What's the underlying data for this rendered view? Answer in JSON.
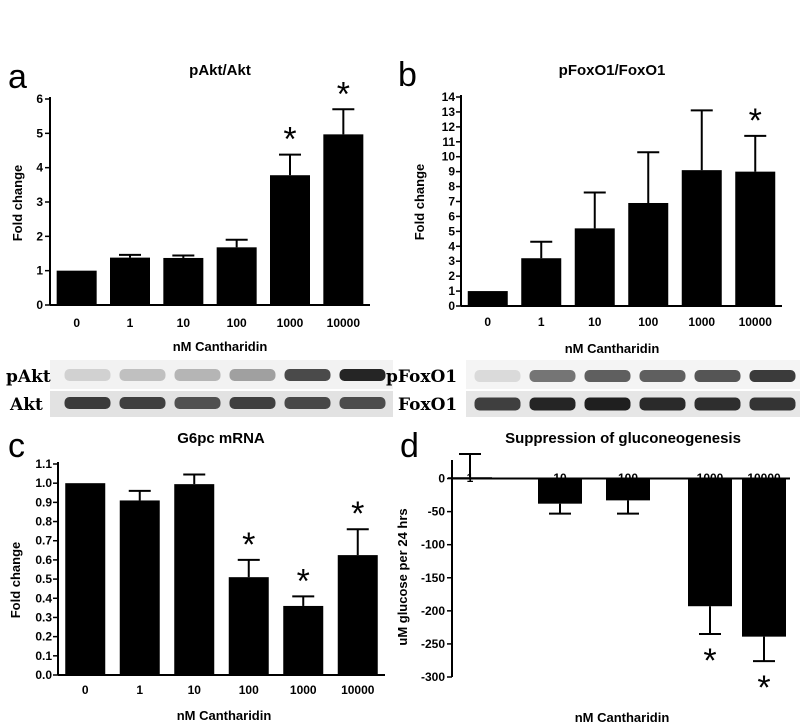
{
  "chart_data": [
    {
      "id": "a",
      "panel_label": "a",
      "type": "bar",
      "title": "pAkt/Akt",
      "xlabel": "nM Cantharidin",
      "ylabel": "Fold change",
      "categories": [
        "0",
        "1",
        "10",
        "100",
        "1000",
        "10000"
      ],
      "values": [
        1.0,
        1.38,
        1.37,
        1.68,
        3.78,
        4.97
      ],
      "errors": [
        0,
        0.08,
        0.07,
        0.22,
        0.6,
        0.73
      ],
      "significant": [
        false,
        false,
        false,
        false,
        true,
        true
      ],
      "ylim": [
        0,
        6
      ],
      "yticks": [
        "0",
        "1",
        "2",
        "3",
        "4",
        "5",
        "6"
      ],
      "significance_marker": "*"
    },
    {
      "id": "b",
      "panel_label": "b",
      "type": "bar",
      "title": "pFoxO1/FoxO1",
      "xlabel": "nM Cantharidin",
      "ylabel": "Fold change",
      "categories": [
        "0",
        "1",
        "10",
        "100",
        "1000",
        "10000"
      ],
      "values": [
        1.0,
        3.2,
        5.2,
        6.9,
        9.1,
        9.0
      ],
      "errors": [
        0,
        1.1,
        2.4,
        3.4,
        4.0,
        2.4
      ],
      "significant": [
        false,
        false,
        false,
        false,
        false,
        true
      ],
      "ylim": [
        0,
        14
      ],
      "yticks": [
        "0",
        "1",
        "2",
        "3",
        "4",
        "5",
        "6",
        "7",
        "8",
        "9",
        "10",
        "11",
        "12",
        "13",
        "14"
      ],
      "significance_marker": "*"
    },
    {
      "id": "c",
      "panel_label": "c",
      "type": "bar",
      "title": "G6pc mRNA",
      "xlabel": "nM Cantharidin",
      "ylabel": "Fold change",
      "categories": [
        "0",
        "1",
        "10",
        "100",
        "1000",
        "10000"
      ],
      "values": [
        1.0,
        0.91,
        0.995,
        0.51,
        0.36,
        0.625
      ],
      "errors": [
        0,
        0.05,
        0.05,
        0.09,
        0.05,
        0.135
      ],
      "significant": [
        false,
        false,
        false,
        true,
        true,
        true
      ],
      "ylim": [
        0,
        1.1
      ],
      "yticks": [
        "0.0",
        "0.1",
        "0.2",
        "0.3",
        "0.4",
        "0.5",
        "0.6",
        "0.7",
        "0.8",
        "0.9",
        "1.0",
        "1.1"
      ],
      "significance_marker": "*"
    },
    {
      "id": "d",
      "panel_label": "d",
      "type": "bar",
      "title": "Suppression of gluconeogenesis",
      "xlabel": "nM Cantharidin",
      "ylabel": "uM glucose per 24 hrs",
      "categories": [
        "1",
        "10",
        "100",
        "1000",
        "10000"
      ],
      "values": [
        2,
        -38,
        -33,
        -193,
        -239
      ],
      "errors": [
        35,
        15,
        20,
        42,
        37
      ],
      "significant": [
        false,
        false,
        false,
        true,
        true
      ],
      "ylim": [
        -300,
        25
      ],
      "yticks": [
        "0",
        "-50",
        "-100",
        "-150",
        "-200",
        "-250",
        "-300"
      ],
      "significance_marker": "*"
    }
  ],
  "blots": [
    {
      "panel": "a",
      "bands": [
        {
          "label": "pAkt",
          "intensities": [
            0.12,
            0.2,
            0.25,
            0.35,
            0.75,
            0.92
          ]
        },
        {
          "label": "Akt",
          "intensities": [
            0.82,
            0.8,
            0.72,
            0.8,
            0.76,
            0.74
          ]
        }
      ]
    },
    {
      "panel": "b",
      "bands": [
        {
          "label": "pFoxO1",
          "intensities": [
            0.08,
            0.55,
            0.65,
            0.65,
            0.7,
            0.82
          ]
        },
        {
          "label": "FoxO1",
          "intensities": [
            0.8,
            0.92,
            0.95,
            0.9,
            0.88,
            0.85
          ]
        }
      ]
    }
  ]
}
